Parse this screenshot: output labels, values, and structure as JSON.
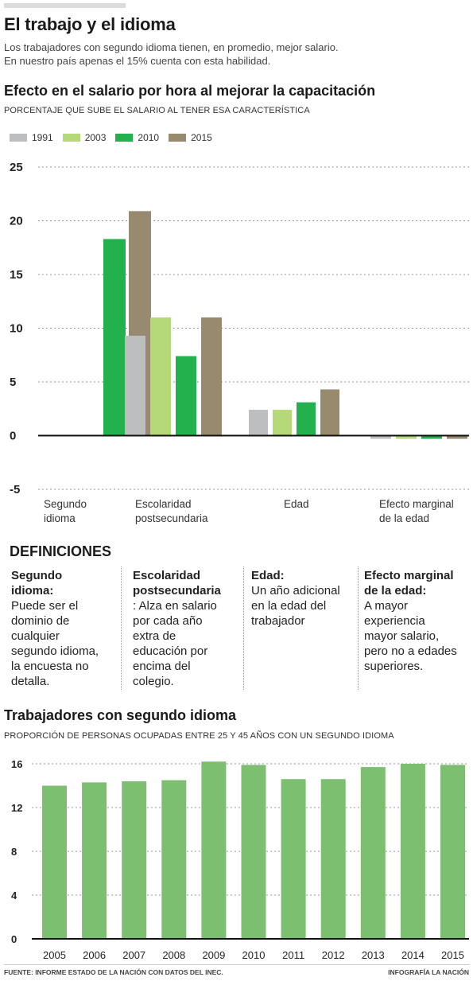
{
  "header": {
    "title": "El trabajo y el idioma",
    "line1": "Los trabajadores con segundo idioma tienen, en promedio, mejor salario.",
    "line2": "En nuestro país apenas el 15% cuenta con esta habilidad."
  },
  "chart1": {
    "title": "Efecto en el salario por hora al mejorar la capacitación",
    "subtitle": "PORCENTAJE QUE SUBE EL SALARIO AL TENER ESA CARACTERÍSTICA"
  },
  "chart2": {
    "title": "Trabajadores con segundo idioma",
    "subtitle": "PROPORCIÓN DE PERSONAS OCUPADAS ENTRE 25 Y 45 AÑOS CON UN SEGUNDO IDIOMA"
  },
  "definitions": {
    "title": "DEFINICIONES",
    "items": [
      {
        "head1": "Segundo",
        "head2": "idioma:",
        "body": [
          "Puede ser el",
          "dominio de",
          "cualquier",
          "segundo idioma,",
          "la encuesta no",
          "detalla."
        ]
      },
      {
        "head1": "Escolaridad",
        "head2": "postsecundaria",
        "body": [
          ":  Alza  en salario",
          "por cada año",
          "extra de",
          "educación por",
          "encima del",
          "colegio."
        ]
      },
      {
        "head1": "Edad:",
        "head2": "",
        "body": [
          "Un año adicional",
          "en la edad del",
          "trabajador"
        ]
      },
      {
        "head1": "Efecto marginal",
        "head2": "de la edad:",
        "body": [
          "A mayor",
          "experiencia",
          "mayor salario,",
          "pero no a edades",
          "superiores."
        ]
      }
    ]
  },
  "footer": {
    "source": "FUENTE:  INFORME ESTADO DE LA NACIÓN CON DATOS DEL INEC.",
    "credit": "INFOGRAFÍA LA NACIÓN"
  },
  "chart_data": [
    {
      "type": "bar",
      "title": "Efecto en el salario por hora al mejorar la capacitación",
      "subtitle": "PORCENTAJE QUE SUBE EL SALARIO AL TENER ESA CARACTERÍSTICA",
      "categories": [
        [
          "Segundo",
          "idioma"
        ],
        [
          "Escolaridad",
          "postsecundaria"
        ],
        [
          "Edad"
        ],
        [
          "Efecto marginal",
          "de la edad"
        ]
      ],
      "series": [
        {
          "name": "1991",
          "color": "#bdbec0",
          "values": [
            null,
            9.3,
            2.4,
            -0.3
          ]
        },
        {
          "name": "2003",
          "color": "#b5d878",
          "values": [
            null,
            11.0,
            2.4,
            -0.3
          ]
        },
        {
          "name": "2010",
          "color": "#22b14c",
          "values": [
            18.3,
            7.4,
            3.1,
            -0.3
          ]
        },
        {
          "name": "2015",
          "color": "#978a6e",
          "values": [
            20.9,
            11.0,
            4.3,
            -0.3
          ]
        }
      ],
      "ylim": [
        -5,
        25
      ],
      "yticks": [
        25,
        20,
        15,
        10,
        5,
        0,
        -5
      ],
      "grid": true,
      "legend": "top-left"
    },
    {
      "type": "bar",
      "title": "Trabajadores con segundo idioma",
      "subtitle": "PROPORCIÓN DE PERSONAS OCUPADAS ENTRE 25 Y 45 AÑOS CON UN SEGUNDO IDIOMA",
      "categories": [
        "2005",
        "2006",
        "2007",
        "2008",
        "2009",
        "2010",
        "2011",
        "2012",
        "2013",
        "2014",
        "2015"
      ],
      "values": [
        14.0,
        14.3,
        14.4,
        14.5,
        16.2,
        15.9,
        14.6,
        14.6,
        15.7,
        16.0,
        15.9
      ],
      "color": "#7dbf70",
      "ylim": [
        0,
        16
      ],
      "yticks": [
        16,
        12,
        8,
        4,
        0
      ],
      "grid": true
    }
  ]
}
